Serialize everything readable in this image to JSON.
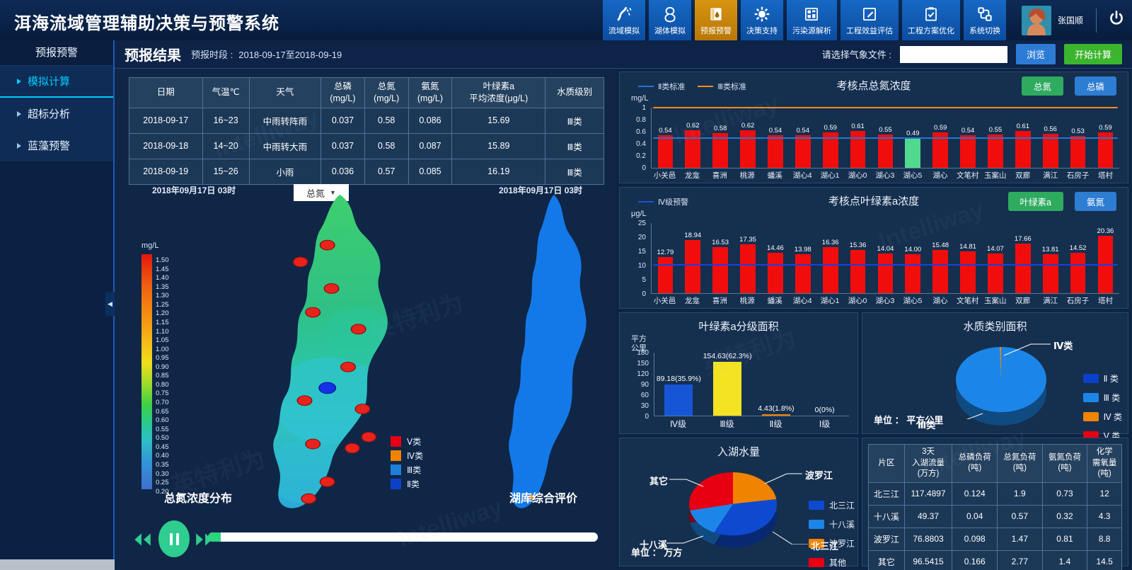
{
  "header": {
    "title": "洱海流域管理辅助决策与预警系统",
    "nav_items": [
      {
        "label": "流域模拟",
        "icon": "river-icon"
      },
      {
        "label": "湖体模拟",
        "icon": "lake-icon"
      },
      {
        "label": "预报预警",
        "icon": "forecast-warning-icon"
      },
      {
        "label": "决策支持",
        "icon": "decision-gear-icon"
      },
      {
        "label": "污染源解析",
        "icon": "pollution-grid-icon"
      },
      {
        "label": "工程效益评估",
        "icon": "edit-evaluate-icon"
      },
      {
        "label": "工程方案优化",
        "icon": "clipboard-check-icon"
      },
      {
        "label": "系统切换",
        "icon": "system-switch-icon"
      }
    ],
    "active_nav": "预报预警",
    "user_name": "张国顺"
  },
  "icons": {
    "caret_down": "▼",
    "collapse_left": "◀"
  },
  "sidebar": {
    "title": "预报预警",
    "items": [
      {
        "label": "模拟计算",
        "active": true
      },
      {
        "label": "超标分析",
        "active": false
      },
      {
        "label": "蓝藻预警",
        "active": false
      }
    ]
  },
  "toolbar": {
    "result_title": "预报结果",
    "period_label": "预报时段 :",
    "period_value": "2018-09-17至2018-09-19",
    "weather_file_label": "请选择气象文件 :",
    "weather_file_value": "",
    "browse_button": "浏览",
    "start_button": "开始计算"
  },
  "forecast_table": {
    "headers": [
      [
        "日期"
      ],
      [
        "气温℃"
      ],
      [
        "天气"
      ],
      [
        "总磷",
        "(mg/L)"
      ],
      [
        "总氮",
        "(mg/L)"
      ],
      [
        "氨氮",
        "(mg/L)"
      ],
      [
        "叶绿素a",
        "平均浓度(μg/L)"
      ],
      [
        "水质级别"
      ]
    ],
    "rows": [
      [
        "2018-09-17",
        "16~23",
        "中雨转阵雨",
        "0.037",
        "0.58",
        "0.086",
        "15.69",
        "Ⅲ类"
      ],
      [
        "2018-09-18",
        "14~20",
        "中雨转大雨",
        "0.037",
        "0.58",
        "0.087",
        "15.89",
        "Ⅲ类"
      ],
      [
        "2018-09-19",
        "15~26",
        "小雨",
        "0.036",
        "0.57",
        "0.085",
        "16.19",
        "Ⅲ类"
      ]
    ]
  },
  "maps": {
    "left": {
      "timestamp": "2018年09月17日  03时",
      "layer_select": "总氮",
      "caption": "总氮浓度分布"
    },
    "right": {
      "timestamp": "2018年09月17日  03时",
      "caption": "湖库综合评价"
    },
    "colorbar": {
      "unit": "mg/L",
      "ticks": [
        "1.50",
        "1.45",
        "1.40",
        "1.35",
        "1.30",
        "1.25",
        "1.20",
        "1.15",
        "1.10",
        "1.05",
        "1.00",
        "0.95",
        "0.90",
        "0.85",
        "0.80",
        "0.75",
        "0.70",
        "0.65",
        "0.60",
        "0.55",
        "0.50",
        "0.45",
        "0.40",
        "0.35",
        "0.30",
        "0.25",
        "0.20"
      ]
    },
    "class_legend": [
      {
        "label": "Ⅴ类",
        "color": "#e60012"
      },
      {
        "label": "Ⅳ类",
        "color": "#f08300"
      },
      {
        "label": "Ⅲ类",
        "color": "#1e7fd8"
      },
      {
        "label": "Ⅱ类",
        "color": "#0b41c8"
      }
    ]
  },
  "chart_data": [
    {
      "id": "tn_bar",
      "type": "bar",
      "title": "考核点总氮浓度",
      "ylabel": "mg/L",
      "ylim": [
        0,
        1
      ],
      "y_ticks": [
        "1",
        "0.8",
        "0.6",
        "0.4",
        "0.2",
        "0"
      ],
      "legend": [
        {
          "label": "Ⅱ类标准",
          "color": "#1f78d4"
        },
        {
          "label": "Ⅲ类标准",
          "color": "#ef8b1f"
        }
      ],
      "buttons": [
        {
          "label": "总氮",
          "color": "#2eab5f"
        },
        {
          "label": "总磷",
          "color": "#2d7dd2"
        }
      ],
      "ref_lines": [
        {
          "label": "Ⅲ类标准",
          "value": 1.0,
          "color": "#ef8b1f"
        },
        {
          "label": "Ⅱ类标准",
          "value": 0.5,
          "color": "#1f78d4"
        }
      ],
      "categories": [
        "小关邑",
        "龙龛",
        "喜洲",
        "桃源",
        "蟠溪",
        "湖心4",
        "湖心1",
        "湖心0",
        "湖心3",
        "湖心5",
        "湖心",
        "文笔村",
        "玉案山",
        "双廊",
        "满江",
        "石房子",
        "塔村"
      ],
      "values": [
        0.54,
        0.62,
        0.58,
        0.62,
        0.54,
        0.54,
        0.59,
        0.61,
        0.55,
        0.49,
        0.59,
        0.54,
        0.55,
        0.61,
        0.56,
        0.53,
        0.59
      ],
      "labels": [
        "0.54",
        "0.62",
        "0.58",
        "0.62",
        "0.54",
        "0.54",
        "0.59",
        "0.61",
        "0.55",
        "0.49",
        "0.59",
        "0.54",
        "0.55",
        "0.61",
        "0.56",
        "0.53",
        "0.59"
      ],
      "bar_color": "#f20d0d",
      "highlight_index": 9,
      "highlight_color": "#52d98f"
    },
    {
      "id": "chla_bar",
      "type": "bar",
      "title": "考核点叶绿素a浓度",
      "ylabel": "μg/L",
      "ylim": [
        0,
        25
      ],
      "y_ticks": [
        "25",
        "20",
        "15",
        "10",
        "5",
        "0"
      ],
      "legend": [
        {
          "label": "Ⅳ级预警",
          "color": "#1f4fd8"
        }
      ],
      "buttons": [
        {
          "label": "叶绿素a",
          "color": "#2eab5f"
        },
        {
          "label": "氨氮",
          "color": "#2d7dd2"
        }
      ],
      "ref_lines": [
        {
          "label": "Ⅳ级预警",
          "value": 10,
          "color": "#1442e0"
        }
      ],
      "categories": [
        "小关邑",
        "龙龛",
        "喜洲",
        "桃源",
        "蟠溪",
        "湖心4",
        "湖心1",
        "湖心0",
        "湖心3",
        "湖心5",
        "湖心",
        "文笔村",
        "玉案山",
        "双廊",
        "满江",
        "石房子",
        "塔村"
      ],
      "values": [
        12.79,
        18.94,
        16.53,
        17.35,
        14.46,
        13.98,
        16.36,
        15.36,
        14.04,
        14.0,
        15.48,
        14.81,
        14.07,
        17.66,
        13.81,
        14.52,
        20.36
      ],
      "labels": [
        "12.79",
        "18.94",
        "16.53",
        "17.35",
        "14.46",
        "13.98",
        "16.36",
        "15.36",
        "14.04",
        "14.00",
        "15.48",
        "14.81",
        "14.07",
        "17.66",
        "13.81",
        "14.52",
        "20.36"
      ],
      "bar_color": "#f20d0d"
    },
    {
      "id": "chla_grade_area",
      "type": "bar",
      "title": "叶绿素a分级面积",
      "ylabel": "平方\n公里",
      "ylim": [
        0,
        180
      ],
      "y_ticks": [
        "180",
        "150",
        "120",
        "90",
        "60",
        "30",
        "0"
      ],
      "categories": [
        "Ⅳ级",
        "Ⅲ级",
        "Ⅱ级",
        "Ⅰ级"
      ],
      "values": [
        89.18,
        154.63,
        4.43,
        0
      ],
      "labels": [
        "89.18(35.9%)",
        "154.63(62.3%)",
        "4.43(1.8%)",
        "0(0%)"
      ],
      "colors": [
        "#1656d6",
        "#f3e322",
        "#f08300",
        "#f08300"
      ]
    },
    {
      "id": "wq_area_pie",
      "type": "pie",
      "title": "水质类别面积",
      "unit_label": "单位 ：  平方公里",
      "slices": [
        {
          "label": "Ⅱ类",
          "value": 0,
          "color": "#0b41c8"
        },
        {
          "label": "Ⅲ类",
          "value": 99.5,
          "color": "#1c86e8"
        },
        {
          "label": "Ⅳ类",
          "value": 0.5,
          "color": "#f08300"
        },
        {
          "label": "Ⅴ类",
          "value": 0,
          "color": "#e60012"
        }
      ],
      "callouts": [
        "Ⅳ类",
        "Ⅲ类"
      ],
      "legend": [
        {
          "label": "Ⅱ 类",
          "color": "#0b41c8"
        },
        {
          "label": "Ⅲ 类",
          "color": "#1c86e8"
        },
        {
          "label": "Ⅳ 类",
          "color": "#f08300"
        },
        {
          "label": "Ⅴ 类",
          "color": "#e60012"
        }
      ]
    },
    {
      "id": "inflow_pie",
      "type": "pie",
      "title": "入湖水量",
      "unit_label": "单位 ：  万方",
      "slices": [
        {
          "label": "波罗江",
          "value": 76.8803,
          "color": "#f08300"
        },
        {
          "label": "北三江",
          "value": 117.4897,
          "color": "#0e4ad0"
        },
        {
          "label": "十八溪",
          "value": 49.37,
          "color": "#1c86e8"
        },
        {
          "label": "其它",
          "value": 96.5415,
          "color": "#e60012"
        }
      ],
      "callouts": [
        "波罗江",
        "北三江",
        "十八溪",
        "其它"
      ],
      "legend": [
        {
          "label": "北三江",
          "color": "#0e4ad0"
        },
        {
          "label": "十八溪",
          "color": "#1c86e8"
        },
        {
          "label": "波罗江",
          "color": "#f08300"
        },
        {
          "label": "其他",
          "color": "#e60012"
        }
      ]
    }
  ],
  "load_table": {
    "headers": [
      [
        "片区"
      ],
      [
        "3天",
        "入湖流量",
        "(万方)"
      ],
      [
        "总磷负荷",
        "(吨)"
      ],
      [
        "总氮负荷",
        "(吨)"
      ],
      [
        "氨氮负荷",
        "(吨)"
      ],
      [
        "化学",
        "需氧量",
        "(吨)"
      ]
    ],
    "rows": [
      [
        "北三江",
        "117.4897",
        "0.124",
        "1.9",
        "0.73",
        "12"
      ],
      [
        "十八溪",
        "49.37",
        "0.04",
        "0.57",
        "0.32",
        "4.3"
      ],
      [
        "波罗江",
        "76.8803",
        "0.098",
        "1.47",
        "0.81",
        "8.8"
      ],
      [
        "其它",
        "96.5415",
        "0.166",
        "2.77",
        "1.4",
        "14.5"
      ]
    ]
  },
  "watermarks": [
    "Intelliway",
    "英特利为"
  ]
}
